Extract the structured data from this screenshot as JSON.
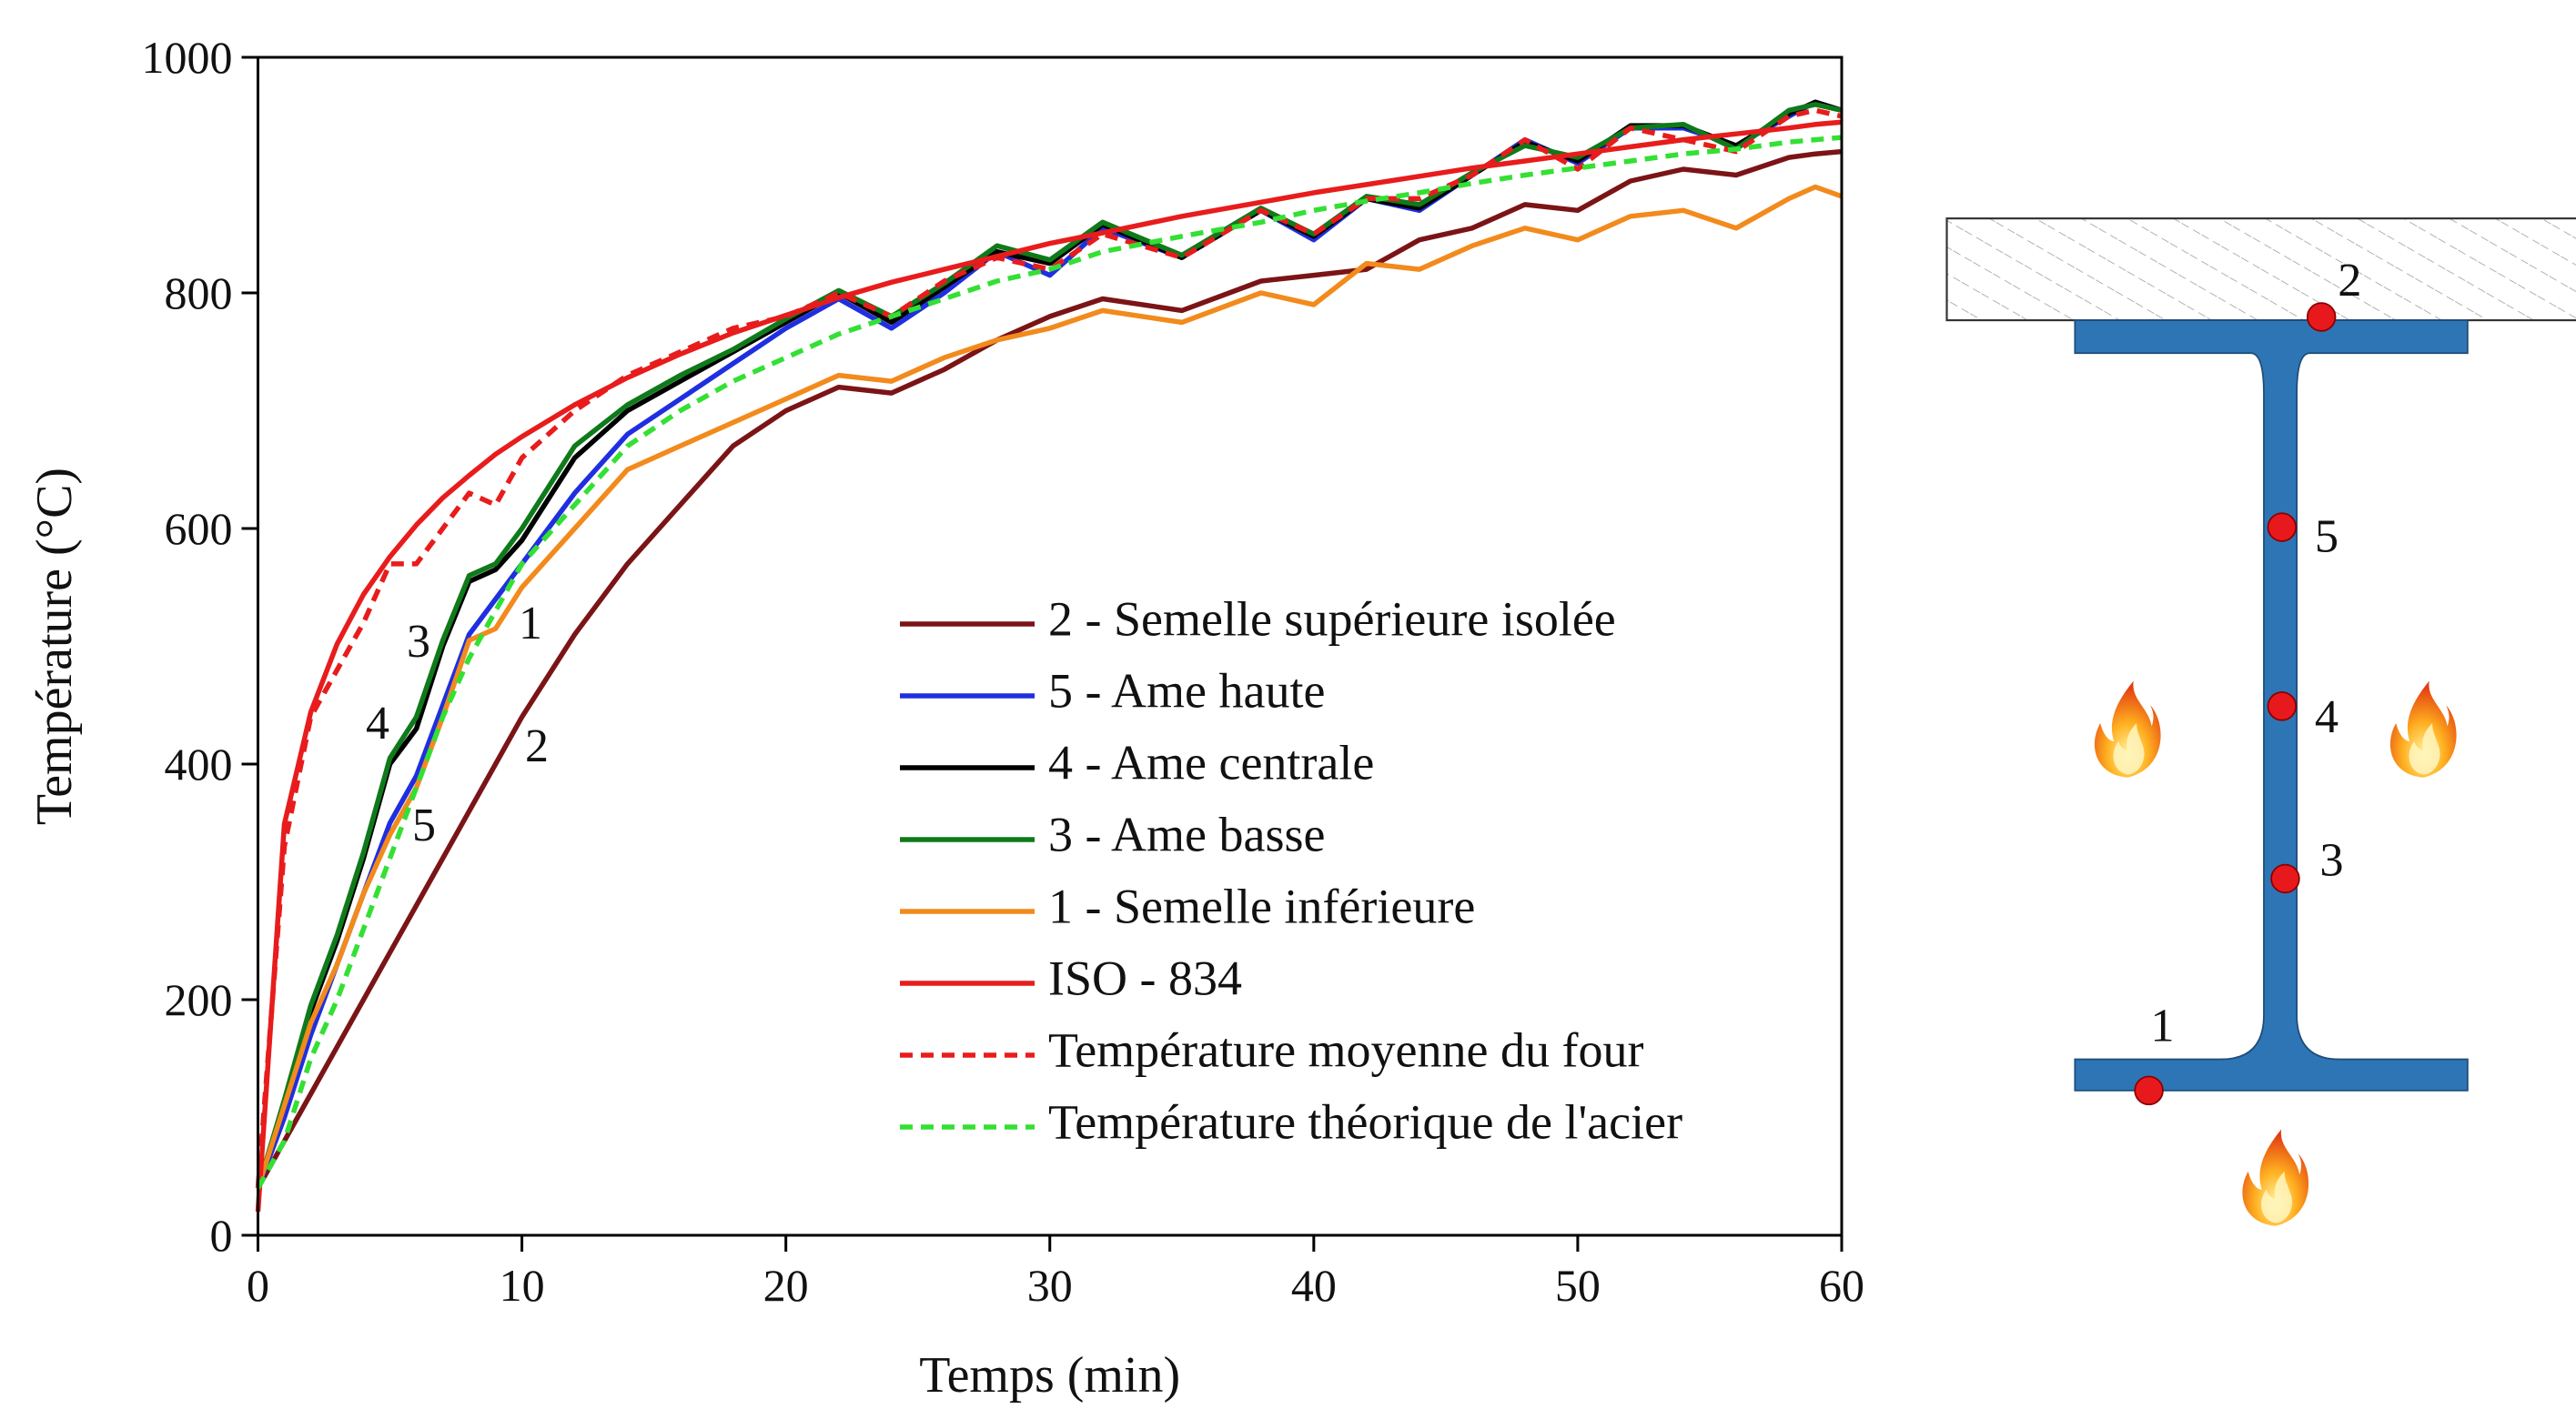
{
  "chart_data": {
    "type": "line",
    "xlabel": "Temps (min)",
    "ylabel": "Température (°C)",
    "x": [
      0,
      1,
      2,
      3,
      4,
      5,
      6,
      7,
      8,
      9,
      10,
      12,
      14,
      16,
      18,
      20,
      22,
      24,
      26,
      28,
      30,
      32,
      35,
      38,
      40,
      42,
      44,
      46,
      48,
      50,
      52,
      54,
      56,
      58,
      59,
      60
    ],
    "xlim": [
      0,
      60
    ],
    "xticks": [
      0,
      10,
      20,
      30,
      40,
      50,
      60
    ],
    "ylim": [
      0,
      1000
    ],
    "yticks": [
      0,
      200,
      400,
      600,
      800,
      1000
    ],
    "legend": "lower right",
    "series": [
      {
        "name": "2 - Semelle supérieure isolée",
        "color": "#7b1416",
        "dashed": false,
        "values": [
          40,
          80,
          120,
          160,
          200,
          240,
          280,
          320,
          360,
          400,
          440,
          510,
          570,
          620,
          670,
          700,
          720,
          715,
          735,
          760,
          780,
          795,
          785,
          810,
          815,
          820,
          845,
          855,
          875,
          870,
          895,
          905,
          900,
          915,
          918,
          920
        ]
      },
      {
        "name": "5 - Ame haute",
        "color": "#1f2fe0",
        "dashed": false,
        "values": [
          40,
          100,
          170,
          230,
          290,
          350,
          390,
          450,
          510,
          540,
          570,
          630,
          680,
          710,
          740,
          770,
          795,
          770,
          800,
          835,
          815,
          855,
          830,
          870,
          845,
          880,
          870,
          900,
          930,
          910,
          940,
          940,
          925,
          950,
          962,
          955
        ]
      },
      {
        "name": "4 - Ame centrale",
        "color": "#000000",
        "dashed": false,
        "values": [
          40,
          110,
          190,
          250,
          320,
          400,
          430,
          500,
          555,
          565,
          590,
          660,
          700,
          725,
          750,
          775,
          800,
          775,
          805,
          835,
          825,
          858,
          830,
          870,
          848,
          880,
          872,
          900,
          928,
          912,
          942,
          942,
          925,
          952,
          962,
          955
        ]
      },
      {
        "name": "3 - Ame basse",
        "color": "#0f7a1a",
        "dashed": false,
        "values": [
          40,
          115,
          195,
          255,
          325,
          405,
          440,
          505,
          560,
          570,
          600,
          670,
          705,
          730,
          752,
          778,
          802,
          780,
          808,
          840,
          828,
          860,
          832,
          872,
          850,
          882,
          875,
          902,
          925,
          915,
          940,
          943,
          922,
          955,
          960,
          955
        ]
      },
      {
        "name": "1 - Semelle inférieure",
        "color": "#f28a1c",
        "dashed": false,
        "values": [
          40,
          110,
          180,
          230,
          290,
          340,
          380,
          440,
          505,
          515,
          550,
          600,
          650,
          670,
          690,
          710,
          730,
          725,
          745,
          760,
          770,
          785,
          775,
          800,
          790,
          825,
          820,
          840,
          855,
          845,
          865,
          870,
          855,
          880,
          890,
          882
        ]
      },
      {
        "name": "ISO - 834",
        "color": "#e81c1c",
        "dashed": false,
        "values": [
          20,
          349,
          444,
          502,
          544,
          576,
          603,
          626,
          645,
          663,
          678,
          705,
          728,
          748,
          766,
          781,
          796,
          809,
          820,
          831,
          842,
          851,
          865,
          877,
          885,
          892,
          899,
          906,
          912,
          918,
          924,
          930,
          935,
          940,
          943,
          945
        ]
      },
      {
        "name": "Température moyenne du four",
        "color": "#e81c1c",
        "dashed": true,
        "values": [
          40,
          330,
          440,
          480,
          520,
          570,
          570,
          600,
          630,
          620,
          660,
          700,
          730,
          750,
          770,
          780,
          800,
          780,
          810,
          830,
          820,
          850,
          830,
          870,
          850,
          880,
          880,
          900,
          930,
          905,
          940,
          930,
          920,
          950,
          955,
          950
        ]
      },
      {
        "name": "Température théorique de l'acier",
        "color": "#33e033",
        "dashed": true,
        "values": [
          40,
          80,
          150,
          200,
          260,
          320,
          380,
          440,
          490,
          530,
          570,
          620,
          670,
          700,
          725,
          745,
          765,
          780,
          795,
          810,
          820,
          835,
          848,
          860,
          870,
          878,
          885,
          893,
          900,
          906,
          912,
          918,
          922,
          928,
          930,
          932
        ]
      }
    ],
    "annotations": [
      "3",
      "4",
      "5",
      "1",
      "2"
    ]
  },
  "diagram": {
    "labels": [
      "2",
      "5",
      "4",
      "3",
      "1"
    ]
  }
}
